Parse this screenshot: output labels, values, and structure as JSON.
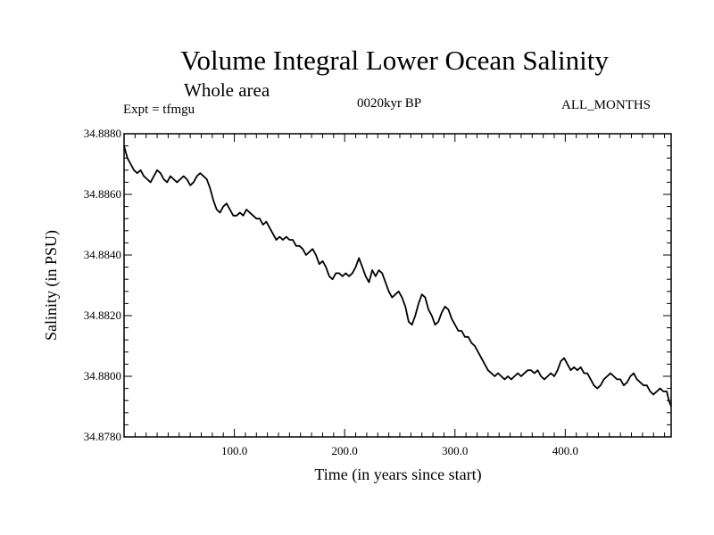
{
  "chart_data": {
    "type": "line",
    "title": "Volume Integral Lower Ocean Salinity",
    "subtitle": "Whole area",
    "annotations": {
      "experiment": "Expt = tfmgu",
      "period": "0020kyr BP",
      "months": "ALL_MONTHS"
    },
    "xlabel": "Time (in years since start)",
    "ylabel": "Salinity (in PSU)",
    "xlim": [
      0,
      496
    ],
    "ylim": [
      34.878,
      34.888
    ],
    "x_ticks": [
      {
        "value": 100,
        "label": "100.0"
      },
      {
        "value": 200,
        "label": "200.0"
      },
      {
        "value": 300,
        "label": "300.0"
      },
      {
        "value": 400,
        "label": "400.0"
      }
    ],
    "y_ticks": [
      {
        "value": 34.878,
        "label": "34.8780"
      },
      {
        "value": 34.88,
        "label": "34.8800"
      },
      {
        "value": 34.882,
        "label": "34.8820"
      },
      {
        "value": 34.884,
        "label": "34.8840"
      },
      {
        "value": 34.886,
        "label": "34.8860"
      },
      {
        "value": 34.888,
        "label": "34.8880"
      }
    ],
    "grid": false,
    "series": [
      {
        "color": "#000000",
        "points": [
          [
            0,
            34.8876
          ],
          [
            3,
            34.8872
          ],
          [
            6,
            34.887
          ],
          [
            9,
            34.8868
          ],
          [
            12,
            34.8867
          ],
          [
            15,
            34.8868
          ],
          [
            18,
            34.8866
          ],
          [
            21,
            34.8865
          ],
          [
            24,
            34.8864
          ],
          [
            27,
            34.8866
          ],
          [
            30,
            34.8868
          ],
          [
            33,
            34.8867
          ],
          [
            36,
            34.8865
          ],
          [
            39,
            34.8864
          ],
          [
            42,
            34.8866
          ],
          [
            45,
            34.8865
          ],
          [
            48,
            34.8864
          ],
          [
            51,
            34.8865
          ],
          [
            54,
            34.8866
          ],
          [
            57,
            34.8865
          ],
          [
            60,
            34.8863
          ],
          [
            63,
            34.8864
          ],
          [
            66,
            34.8866
          ],
          [
            69,
            34.8867
          ],
          [
            72,
            34.8866
          ],
          [
            75,
            34.8865
          ],
          [
            78,
            34.8862
          ],
          [
            81,
            34.8858
          ],
          [
            84,
            34.8855
          ],
          [
            87,
            34.8854
          ],
          [
            90,
            34.8856
          ],
          [
            93,
            34.8857
          ],
          [
            96,
            34.8855
          ],
          [
            99,
            34.8853
          ],
          [
            102,
            34.8853
          ],
          [
            105,
            34.8854
          ],
          [
            108,
            34.8853
          ],
          [
            111,
            34.8855
          ],
          [
            114,
            34.8854
          ],
          [
            117,
            34.8853
          ],
          [
            120,
            34.8852
          ],
          [
            123,
            34.8852
          ],
          [
            126,
            34.885
          ],
          [
            129,
            34.8851
          ],
          [
            132,
            34.8849
          ],
          [
            135,
            34.8847
          ],
          [
            138,
            34.8845
          ],
          [
            141,
            34.8846
          ],
          [
            144,
            34.8845
          ],
          [
            147,
            34.8846
          ],
          [
            150,
            34.8845
          ],
          [
            153,
            34.8845
          ],
          [
            156,
            34.8843
          ],
          [
            159,
            34.8843
          ],
          [
            162,
            34.8842
          ],
          [
            165,
            34.884
          ],
          [
            168,
            34.8841
          ],
          [
            171,
            34.8842
          ],
          [
            174,
            34.884
          ],
          [
            177,
            34.8837
          ],
          [
            180,
            34.8838
          ],
          [
            183,
            34.8836
          ],
          [
            186,
            34.8833
          ],
          [
            189,
            34.8832
          ],
          [
            192,
            34.8834
          ],
          [
            195,
            34.8834
          ],
          [
            198,
            34.8833
          ],
          [
            201,
            34.8834
          ],
          [
            204,
            34.8833
          ],
          [
            207,
            34.8834
          ],
          [
            210,
            34.8836
          ],
          [
            213,
            34.8839
          ],
          [
            216,
            34.8836
          ],
          [
            219,
            34.8833
          ],
          [
            222,
            34.8831
          ],
          [
            225,
            34.8835
          ],
          [
            228,
            34.8833
          ],
          [
            231,
            34.8835
          ],
          [
            234,
            34.8834
          ],
          [
            237,
            34.8831
          ],
          [
            240,
            34.8828
          ],
          [
            243,
            34.8826
          ],
          [
            246,
            34.8827
          ],
          [
            249,
            34.8828
          ],
          [
            252,
            34.8826
          ],
          [
            255,
            34.8823
          ],
          [
            258,
            34.8818
          ],
          [
            261,
            34.8817
          ],
          [
            264,
            34.882
          ],
          [
            267,
            34.8824
          ],
          [
            270,
            34.8827
          ],
          [
            273,
            34.8826
          ],
          [
            276,
            34.8822
          ],
          [
            279,
            34.882
          ],
          [
            282,
            34.8817
          ],
          [
            285,
            34.8818
          ],
          [
            288,
            34.8821
          ],
          [
            291,
            34.8823
          ],
          [
            294,
            34.8822
          ],
          [
            297,
            34.8819
          ],
          [
            300,
            34.8817
          ],
          [
            303,
            34.8815
          ],
          [
            306,
            34.8815
          ],
          [
            309,
            34.8813
          ],
          [
            312,
            34.8813
          ],
          [
            315,
            34.8811
          ],
          [
            318,
            34.881
          ],
          [
            321,
            34.8808
          ],
          [
            324,
            34.8806
          ],
          [
            327,
            34.8804
          ],
          [
            330,
            34.8802
          ],
          [
            333,
            34.8801
          ],
          [
            336,
            34.88
          ],
          [
            339,
            34.8801
          ],
          [
            342,
            34.88
          ],
          [
            345,
            34.8799
          ],
          [
            348,
            34.88
          ],
          [
            351,
            34.8799
          ],
          [
            354,
            34.88
          ],
          [
            357,
            34.8801
          ],
          [
            360,
            34.88
          ],
          [
            363,
            34.8801
          ],
          [
            366,
            34.8802
          ],
          [
            369,
            34.8802
          ],
          [
            372,
            34.8801
          ],
          [
            375,
            34.8802
          ],
          [
            378,
            34.88
          ],
          [
            381,
            34.8799
          ],
          [
            384,
            34.88
          ],
          [
            387,
            34.8801
          ],
          [
            390,
            34.88
          ],
          [
            393,
            34.8802
          ],
          [
            396,
            34.8805
          ],
          [
            399,
            34.8806
          ],
          [
            402,
            34.8804
          ],
          [
            405,
            34.8802
          ],
          [
            408,
            34.8803
          ],
          [
            411,
            34.8802
          ],
          [
            414,
            34.8803
          ],
          [
            417,
            34.8801
          ],
          [
            420,
            34.8801
          ],
          [
            423,
            34.8799
          ],
          [
            426,
            34.8797
          ],
          [
            429,
            34.8796
          ],
          [
            432,
            34.8797
          ],
          [
            435,
            34.8799
          ],
          [
            438,
            34.88
          ],
          [
            441,
            34.8801
          ],
          [
            444,
            34.88
          ],
          [
            447,
            34.8799
          ],
          [
            450,
            34.8799
          ],
          [
            453,
            34.8797
          ],
          [
            456,
            34.8798
          ],
          [
            459,
            34.88
          ],
          [
            462,
            34.8801
          ],
          [
            465,
            34.8799
          ],
          [
            468,
            34.8798
          ],
          [
            471,
            34.8797
          ],
          [
            474,
            34.8797
          ],
          [
            477,
            34.8795
          ],
          [
            480,
            34.8794
          ],
          [
            483,
            34.8795
          ],
          [
            486,
            34.8796
          ],
          [
            489,
            34.8795
          ],
          [
            492,
            34.8795
          ],
          [
            494,
            34.8792
          ],
          [
            496,
            34.879
          ]
        ]
      }
    ]
  }
}
